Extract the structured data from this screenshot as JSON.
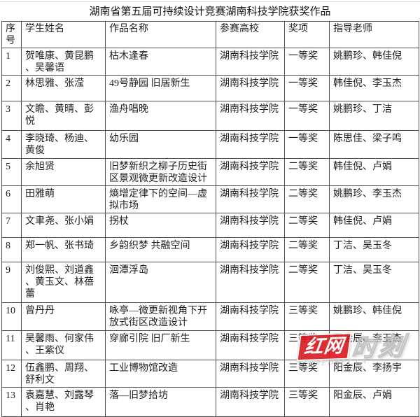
{
  "page": {
    "title": "湖南省第五届可持续设计竞赛湖南科技学院获奖作品"
  },
  "table": {
    "headers": [
      "序号",
      "学生姓名",
      "作品名称",
      "参赛高校",
      "奖项",
      "指导老师"
    ],
    "rows": [
      {
        "no": "1",
        "students": "贺唯康、黄昆鹏、吴馨语",
        "work": "枯木逢春",
        "school": "湖南科技学院",
        "award": "一等奖",
        "advisors": "姚鹏珍、韩佳倪"
      },
      {
        "no": "2",
        "students": "林思雅、张滢",
        "work": "49号静园 旧居新生",
        "school": "湖南科技学院",
        "award": "一等奖",
        "advisors": "韩佳倪、李玉杰"
      },
      {
        "no": "3",
        "students": "文瞻、黄晴、彭悦",
        "work": "渔舟唱晚",
        "school": "湖南科技学院",
        "award": "一等奖",
        "advisors": "姚鹏珍、丁洁"
      },
      {
        "no": "4",
        "students": "李晓琦、杨迪、黄俊",
        "work": "幼乐园",
        "school": "湖南科技学院",
        "award": "一等奖",
        "advisors": "陈思佳、梁子鸣"
      },
      {
        "no": "5",
        "students": "余旭贤",
        "work": "旧梦新织之柳子历史街区景观微更新改造设计",
        "school": "湖南科技学院",
        "award": "二等奖",
        "advisors": "韩佳倪、卢娟"
      },
      {
        "no": "6",
        "students": "田雅萌",
        "work": "熵增定律下的空间—虚拟市场",
        "school": "湖南科技学院",
        "award": "二等奖",
        "advisors": "姚鹏珍、李玉杰"
      },
      {
        "no": "7",
        "students": "文聿尧、张小娟",
        "work": "拐杖",
        "school": "湖南科技学院",
        "award": "二等奖",
        "advisors": "韩佳倪、卢娟"
      },
      {
        "no": "8",
        "students": "郑一帆、张书琦",
        "work": "乡韵织梦 共融空间",
        "school": "湖南科技学院",
        "award": "二等奖",
        "advisors": "丁洁、吴玉冬"
      },
      {
        "no": "9",
        "students": "刘俊熙、刘道鑫、黄玉文、林蓓蕾",
        "work": "洄潭浮岛",
        "school": "湖南科技学院",
        "award": "二等奖",
        "advisors": "丁洁、吴玉冬"
      },
      {
        "no": "10",
        "students": "曾丹丹",
        "work": "咏亭—微更新视角下开放式街区改造设计",
        "school": "湖南科技学院",
        "award": "三等奖",
        "advisors": "姚鹏珍、韩佳倪"
      },
      {
        "no": "11",
        "students": "吴馨雨、何家伟、王紫仪",
        "work": "穿廊引院 旧厂新生",
        "school": "湖南科技学院",
        "award": "三等奖",
        "advisors": "阳金辰、李玉杰"
      },
      {
        "no": "12",
        "students": "伍鑫鹏、周翔、舒利文",
        "work": "工业博物馆改造",
        "school": "湖南科技学院",
        "award": "三等奖",
        "advisors": "阳金辰、李扬宇"
      },
      {
        "no": "13",
        "students": "袁嘉慧、刘露琴、肖艳",
        "work": "落—旧梦拾坊",
        "school": "湖南科技学院",
        "award": "三等奖",
        "advisors": "阳金辰、卢娟"
      }
    ]
  },
  "watermark": {
    "brand": "红网",
    "suffix": "时刻",
    "domain": "REDNET.CN",
    "brand_color": "#d8121a"
  }
}
